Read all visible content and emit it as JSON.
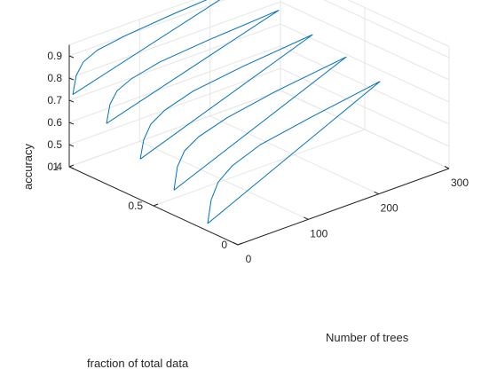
{
  "chart_data": {
    "type": "line",
    "title": "",
    "xlabel": "Number of trees",
    "ylabel": "fraction of  total data",
    "zlabel": "accuracy",
    "xlim": [
      0,
      300
    ],
    "ylim": [
      0,
      1
    ],
    "zlim": [
      0.4,
      0.95
    ],
    "xticks": [
      "0",
      "100",
      "200",
      "300"
    ],
    "yticks": [
      "0",
      "0.5",
      "1"
    ],
    "zticks": [
      "0.4",
      "0.5",
      "0.6",
      "0.7",
      "0.8",
      "0.9"
    ],
    "grid": true,
    "series": [
      {
        "y": 0.2,
        "x": [
          5,
          10,
          20,
          40,
          80,
          150,
          250
        ],
        "z": [
          0.42,
          0.52,
          0.59,
          0.64,
          0.69,
          0.73,
          0.78
        ]
      },
      {
        "y": 0.4,
        "x": [
          5,
          10,
          20,
          40,
          80,
          150,
          250
        ],
        "z": [
          0.5,
          0.6,
          0.66,
          0.7,
          0.74,
          0.78,
          0.82
        ]
      },
      {
        "y": 0.6,
        "x": [
          5,
          10,
          20,
          40,
          80,
          150,
          250
        ],
        "z": [
          0.57,
          0.65,
          0.71,
          0.75,
          0.79,
          0.82,
          0.85
        ]
      },
      {
        "y": 0.8,
        "x": [
          5,
          10,
          20,
          40,
          80,
          150,
          250
        ],
        "z": [
          0.66,
          0.74,
          0.79,
          0.82,
          0.85,
          0.87,
          0.89
        ]
      },
      {
        "y": 1.0,
        "x": [
          5,
          10,
          20,
          40,
          80,
          150,
          250
        ],
        "z": [
          0.72,
          0.8,
          0.85,
          0.88,
          0.9,
          0.92,
          0.94
        ]
      }
    ]
  }
}
